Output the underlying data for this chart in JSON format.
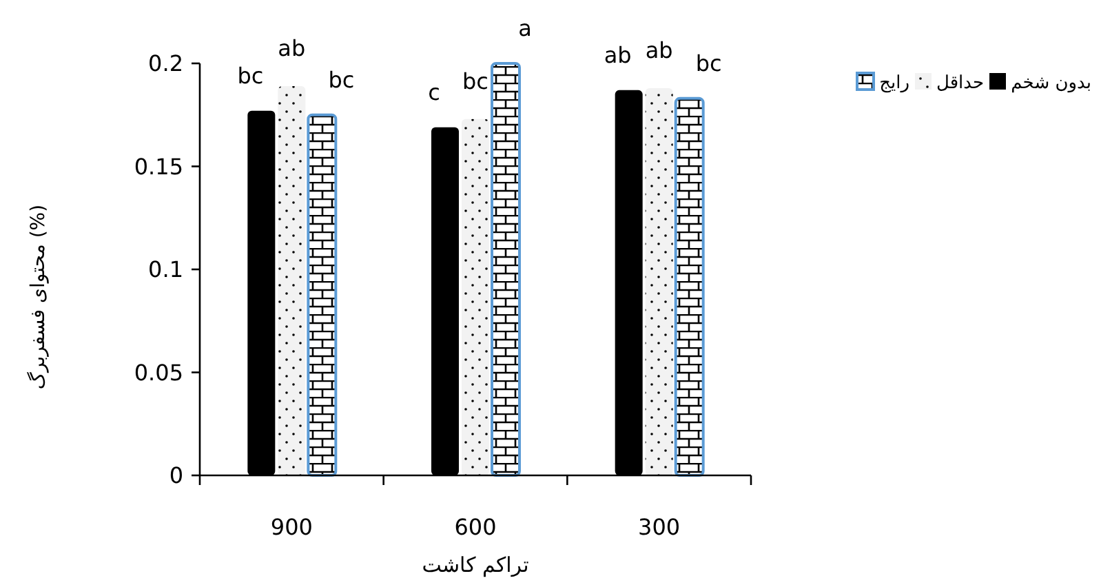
{
  "chart_data": {
    "type": "bar",
    "xlabel": "تراکم کاشت",
    "ylabel": "محتوای فسفربرگ (%)",
    "categories": [
      "900",
      "600",
      "300"
    ],
    "series": [
      {
        "name": "بدون شخم",
        "color": "#000000",
        "values": [
          0.177,
          0.169,
          0.187
        ]
      },
      {
        "name": "حداقل",
        "color": "#f2f2f2",
        "values": [
          0.189,
          0.173,
          0.188
        ]
      },
      {
        "name": "رایج",
        "color": "#5b9bd5",
        "values": [
          0.175,
          0.2,
          0.183
        ]
      }
    ],
    "ylim": [
      0,
      0.2
    ],
    "yticks": [
      0,
      0.05,
      0.1,
      0.15,
      0.2
    ],
    "grid": false,
    "legend": "right",
    "annotations": [
      "bc",
      "ab",
      "bc",
      "c",
      "bc",
      "a",
      "ab",
      "ab",
      "bc"
    ]
  }
}
